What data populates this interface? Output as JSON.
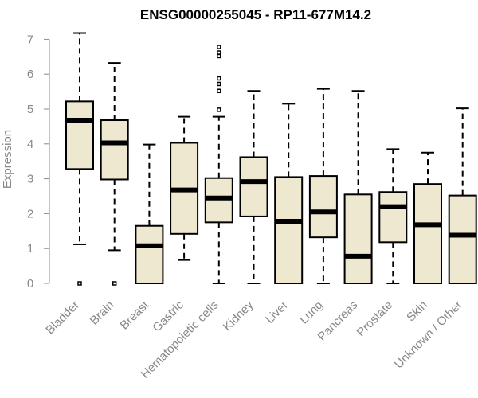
{
  "chart_data": {
    "type": "boxplot",
    "title": "ENSG00000255045 - RP11-677M14.2",
    "xlabel": "",
    "ylabel": "Expression",
    "ylim": [
      0,
      7.2
    ],
    "yticks": [
      0,
      1,
      2,
      3,
      4,
      5,
      6,
      7
    ],
    "box_color": "#efe8d0",
    "categories": [
      "Bladder",
      "Brain",
      "Breast",
      "Gastric",
      "Hematopoietic cells",
      "Kidney",
      "Liver",
      "Lung",
      "Pancreas",
      "Prostate",
      "Skin",
      "Unknown / Other"
    ],
    "boxes": [
      {
        "category": "Bladder",
        "low": 1.12,
        "q1": 3.28,
        "median": 4.68,
        "q3": 5.22,
        "high": 7.18,
        "outliers": [
          0.0
        ]
      },
      {
        "category": "Brain",
        "low": 0.95,
        "q1": 2.98,
        "median": 4.03,
        "q3": 4.68,
        "high": 6.32,
        "outliers": [
          0.0
        ]
      },
      {
        "category": "Breast",
        "low": 0.0,
        "q1": 0.0,
        "median": 1.08,
        "q3": 1.65,
        "high": 3.98,
        "outliers": []
      },
      {
        "category": "Gastric",
        "low": 0.67,
        "q1": 1.42,
        "median": 2.68,
        "q3": 4.03,
        "high": 4.78,
        "outliers": []
      },
      {
        "category": "Hematopoietic cells",
        "low": 0.0,
        "q1": 1.75,
        "median": 2.45,
        "q3": 3.02,
        "high": 4.78,
        "outliers": [
          4.98,
          5.52,
          5.72,
          5.88,
          6.52,
          6.62,
          6.78
        ]
      },
      {
        "category": "Kidney",
        "low": 0.0,
        "q1": 1.92,
        "median": 2.92,
        "q3": 3.62,
        "high": 5.52,
        "outliers": []
      },
      {
        "category": "Liver",
        "low": 0.0,
        "q1": 0.0,
        "median": 1.78,
        "q3": 3.05,
        "high": 5.15,
        "outliers": []
      },
      {
        "category": "Lung",
        "low": 0.0,
        "q1": 1.32,
        "median": 2.05,
        "q3": 3.08,
        "high": 5.58,
        "outliers": []
      },
      {
        "category": "Pancreas",
        "low": 0.0,
        "q1": 0.0,
        "median": 0.78,
        "q3": 2.55,
        "high": 5.52,
        "outliers": []
      },
      {
        "category": "Prostate",
        "low": 0.0,
        "q1": 1.18,
        "median": 2.2,
        "q3": 2.62,
        "high": 3.85,
        "outliers": []
      },
      {
        "category": "Skin",
        "low": 0.0,
        "q1": 0.0,
        "median": 1.68,
        "q3": 2.85,
        "high": 3.75,
        "outliers": []
      },
      {
        "category": "Unknown / Other",
        "low": 0.0,
        "q1": 0.0,
        "median": 1.38,
        "q3": 2.52,
        "high": 5.02,
        "outliers": []
      }
    ]
  }
}
